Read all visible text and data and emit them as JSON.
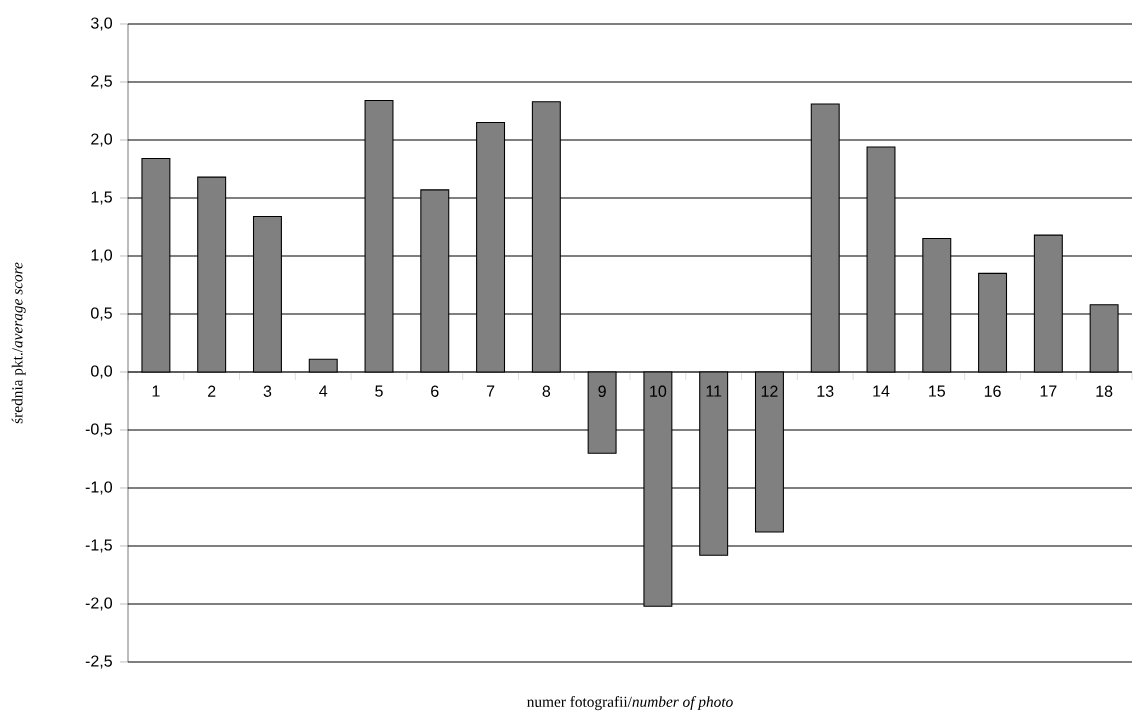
{
  "chart_data": {
    "type": "bar",
    "xlabel": "numer fotografii/*number of photo*",
    "ylabel": "średnia pkt./*average score*",
    "categories": [
      "1",
      "2",
      "3",
      "4",
      "5",
      "6",
      "7",
      "8",
      "9",
      "10",
      "11",
      "12",
      "13",
      "14",
      "15",
      "16",
      "17",
      "18"
    ],
    "values": [
      1.84,
      1.68,
      1.34,
      0.11,
      2.34,
      1.57,
      2.15,
      2.33,
      -0.7,
      -2.02,
      -1.58,
      -1.38,
      2.31,
      1.94,
      1.15,
      0.85,
      1.18,
      0.58
    ],
    "color": "#808080",
    "ylim": [
      -2.5,
      3.0
    ],
    "yticks": [
      {
        "value": -2.5,
        "label": "-2,5"
      },
      {
        "value": -2.0,
        "label": "-2,0"
      },
      {
        "value": -1.5,
        "label": "-1,5"
      },
      {
        "value": -1.0,
        "label": "-1,0"
      },
      {
        "value": -0.5,
        "label": "-0,5"
      },
      {
        "value": 0.0,
        "label": "0,0"
      },
      {
        "value": 0.5,
        "label": "0,5"
      },
      {
        "value": 1.0,
        "label": "1,0"
      },
      {
        "value": 1.5,
        "label": "1,5"
      },
      {
        "value": 2.0,
        "label": "2,0"
      },
      {
        "value": 2.5,
        "label": "2,5"
      },
      {
        "value": 3.0,
        "label": "3,0"
      }
    ],
    "grid": "y"
  }
}
